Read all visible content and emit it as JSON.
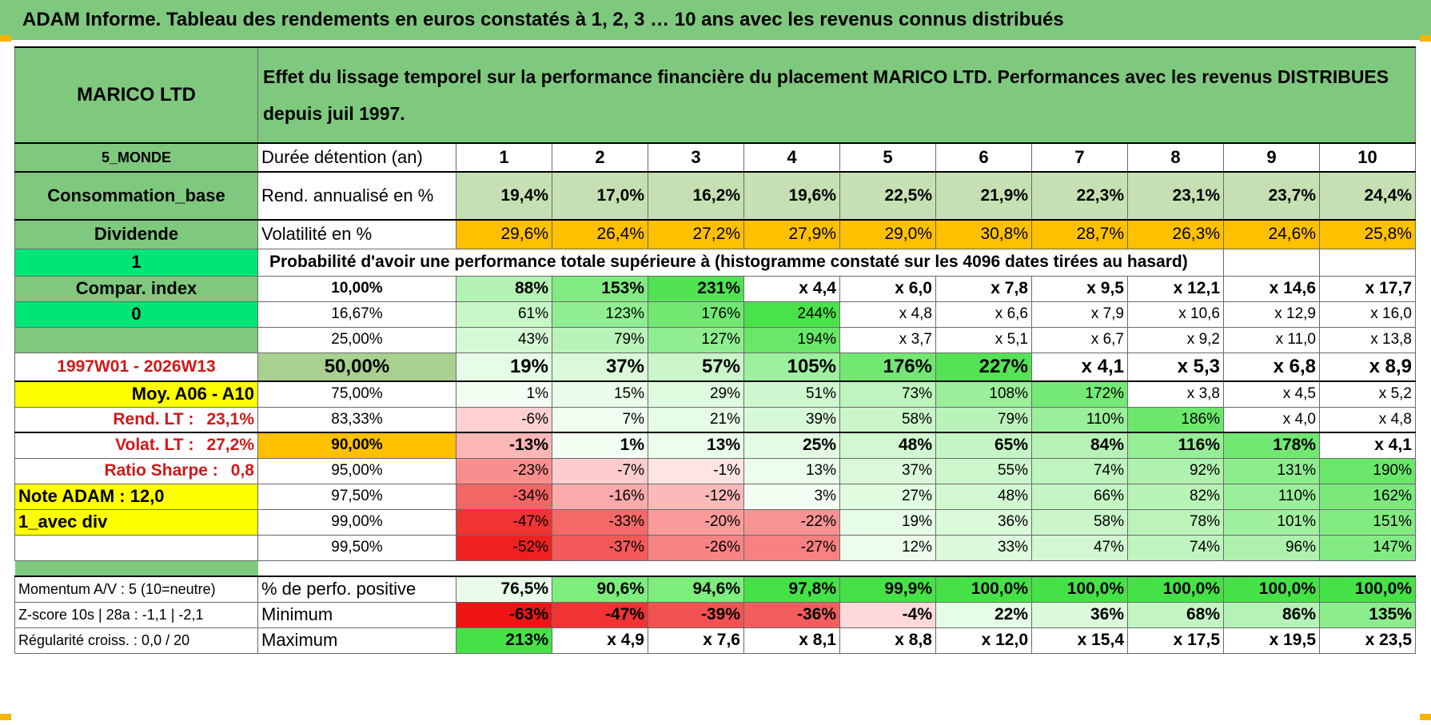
{
  "header": {
    "title": "ADAM Informe. Tableau des rendements en euros constatés à 1, 2, 3 … 10 ans avec les revenus connus distribués"
  },
  "table": {
    "name": "MARICO LTD",
    "description": "Effet du lissage temporel sur la performance financière du placement MARICO LTD. Performances avec les revenus DISTRIBUES depuis juil 1997.",
    "region": "5_MONDE",
    "sector": "Consommation_base",
    "type": "Dividende",
    "flag1": "1",
    "compar_label": "Compar. index",
    "flag0": "0",
    "period": "1997W01 - 2026W13",
    "avg_label": "Moy. A06 - A10",
    "rend_lt_label": "Rend. LT :",
    "rend_lt_value": "23,1%",
    "volat_lt_label": "Volat. LT :",
    "volat_lt_value": "27,2%",
    "sharpe_label": "Ratio Sharpe :",
    "sharpe_value": "0,8",
    "note": "Note ADAM : 12,0",
    "variant": "1_avec div",
    "duration_label": "Durée détention (an)",
    "years": [
      "1",
      "2",
      "3",
      "4",
      "5",
      "6",
      "7",
      "8",
      "9",
      "10"
    ],
    "rend_label": "Rend. annualisé en %",
    "rend": [
      "19,4%",
      "17,0%",
      "16,2%",
      "19,6%",
      "22,5%",
      "21,9%",
      "22,3%",
      "23,1%",
      "23,7%",
      "24,4%"
    ],
    "volat_label": "Volatilité en %",
    "volat": [
      "29,6%",
      "26,4%",
      "27,2%",
      "27,9%",
      "29,0%",
      "30,8%",
      "28,7%",
      "26,3%",
      "24,6%",
      "25,8%"
    ],
    "prob_title": "Probabilité d'avoir une performance totale supérieure à (histogramme constaté sur les 4096 dates tirées au hasard)",
    "prob_rows": [
      {
        "p": "10,00%",
        "v": [
          "88%",
          "153%",
          "231%",
          "x 4,4",
          "x 6,0",
          "x 7,8",
          "x 9,5",
          "x 12,1",
          "x 14,6",
          "x 17,7"
        ]
      },
      {
        "p": "16,67%",
        "v": [
          "61%",
          "123%",
          "176%",
          "244%",
          "x 4,8",
          "x 6,6",
          "x 7,9",
          "x 10,6",
          "x 12,9",
          "x 16,0"
        ]
      },
      {
        "p": "25,00%",
        "v": [
          "43%",
          "79%",
          "127%",
          "194%",
          "x 3,7",
          "x 5,1",
          "x 6,7",
          "x 9,2",
          "x 11,0",
          "x 13,8"
        ]
      },
      {
        "p": "50,00%",
        "v": [
          "19%",
          "37%",
          "57%",
          "105%",
          "176%",
          "227%",
          "x 4,1",
          "x 5,3",
          "x 6,8",
          "x 8,9"
        ]
      },
      {
        "p": "75,00%",
        "v": [
          "1%",
          "15%",
          "29%",
          "51%",
          "73%",
          "108%",
          "172%",
          "x 3,8",
          "x 4,5",
          "x 5,2"
        ]
      },
      {
        "p": "83,33%",
        "v": [
          "-6%",
          "7%",
          "21%",
          "39%",
          "58%",
          "79%",
          "110%",
          "186%",
          "x 4,0",
          "x 4,8"
        ]
      },
      {
        "p": "90,00%",
        "v": [
          "-13%",
          "1%",
          "13%",
          "25%",
          "48%",
          "65%",
          "84%",
          "116%",
          "178%",
          "x 4,1"
        ]
      },
      {
        "p": "95,00%",
        "v": [
          "-23%",
          "-7%",
          "-1%",
          "13%",
          "37%",
          "55%",
          "74%",
          "92%",
          "131%",
          "190%"
        ]
      },
      {
        "p": "97,50%",
        "v": [
          "-34%",
          "-16%",
          "-12%",
          "3%",
          "27%",
          "48%",
          "66%",
          "82%",
          "110%",
          "162%"
        ]
      },
      {
        "p": "99,00%",
        "v": [
          "-47%",
          "-33%",
          "-20%",
          "-22%",
          "19%",
          "36%",
          "58%",
          "78%",
          "101%",
          "151%"
        ]
      },
      {
        "p": "99,50%",
        "v": [
          "-52%",
          "-37%",
          "-26%",
          "-27%",
          "12%",
          "33%",
          "47%",
          "74%",
          "96%",
          "147%"
        ]
      }
    ],
    "momentum": "Momentum A/V : 5 (10=neutre)",
    "zscore": "Z-score 10s | 28a : -1,1 | -2,1",
    "regularite": "Régularité croiss. : 0,0 / 20",
    "pos_label": "% de perfo. positive",
    "pos": [
      "76,5%",
      "90,6%",
      "94,6%",
      "97,8%",
      "99,9%",
      "100,0%",
      "100,0%",
      "100,0%",
      "100,0%",
      "100,0%"
    ],
    "min_label": "Minimum",
    "min": [
      "-63%",
      "-47%",
      "-39%",
      "-36%",
      "-4%",
      "22%",
      "36%",
      "68%",
      "86%",
      "135%"
    ],
    "max_label": "Maximum",
    "max": [
      "213%",
      "x 4,9",
      "x 7,6",
      "x 8,1",
      "x 8,8",
      "x 12,0",
      "x 15,4",
      "x 17,5",
      "x 19,5",
      "x 23,5"
    ]
  },
  "colors": {
    "header_green": "#7fc97f",
    "light_green": "#c6e0b4",
    "orange": "#ffc000",
    "yellow": "#ffff00",
    "bright_green": "#00e676",
    "red_text": "#d01818",
    "neg_red": "#ff0000"
  }
}
